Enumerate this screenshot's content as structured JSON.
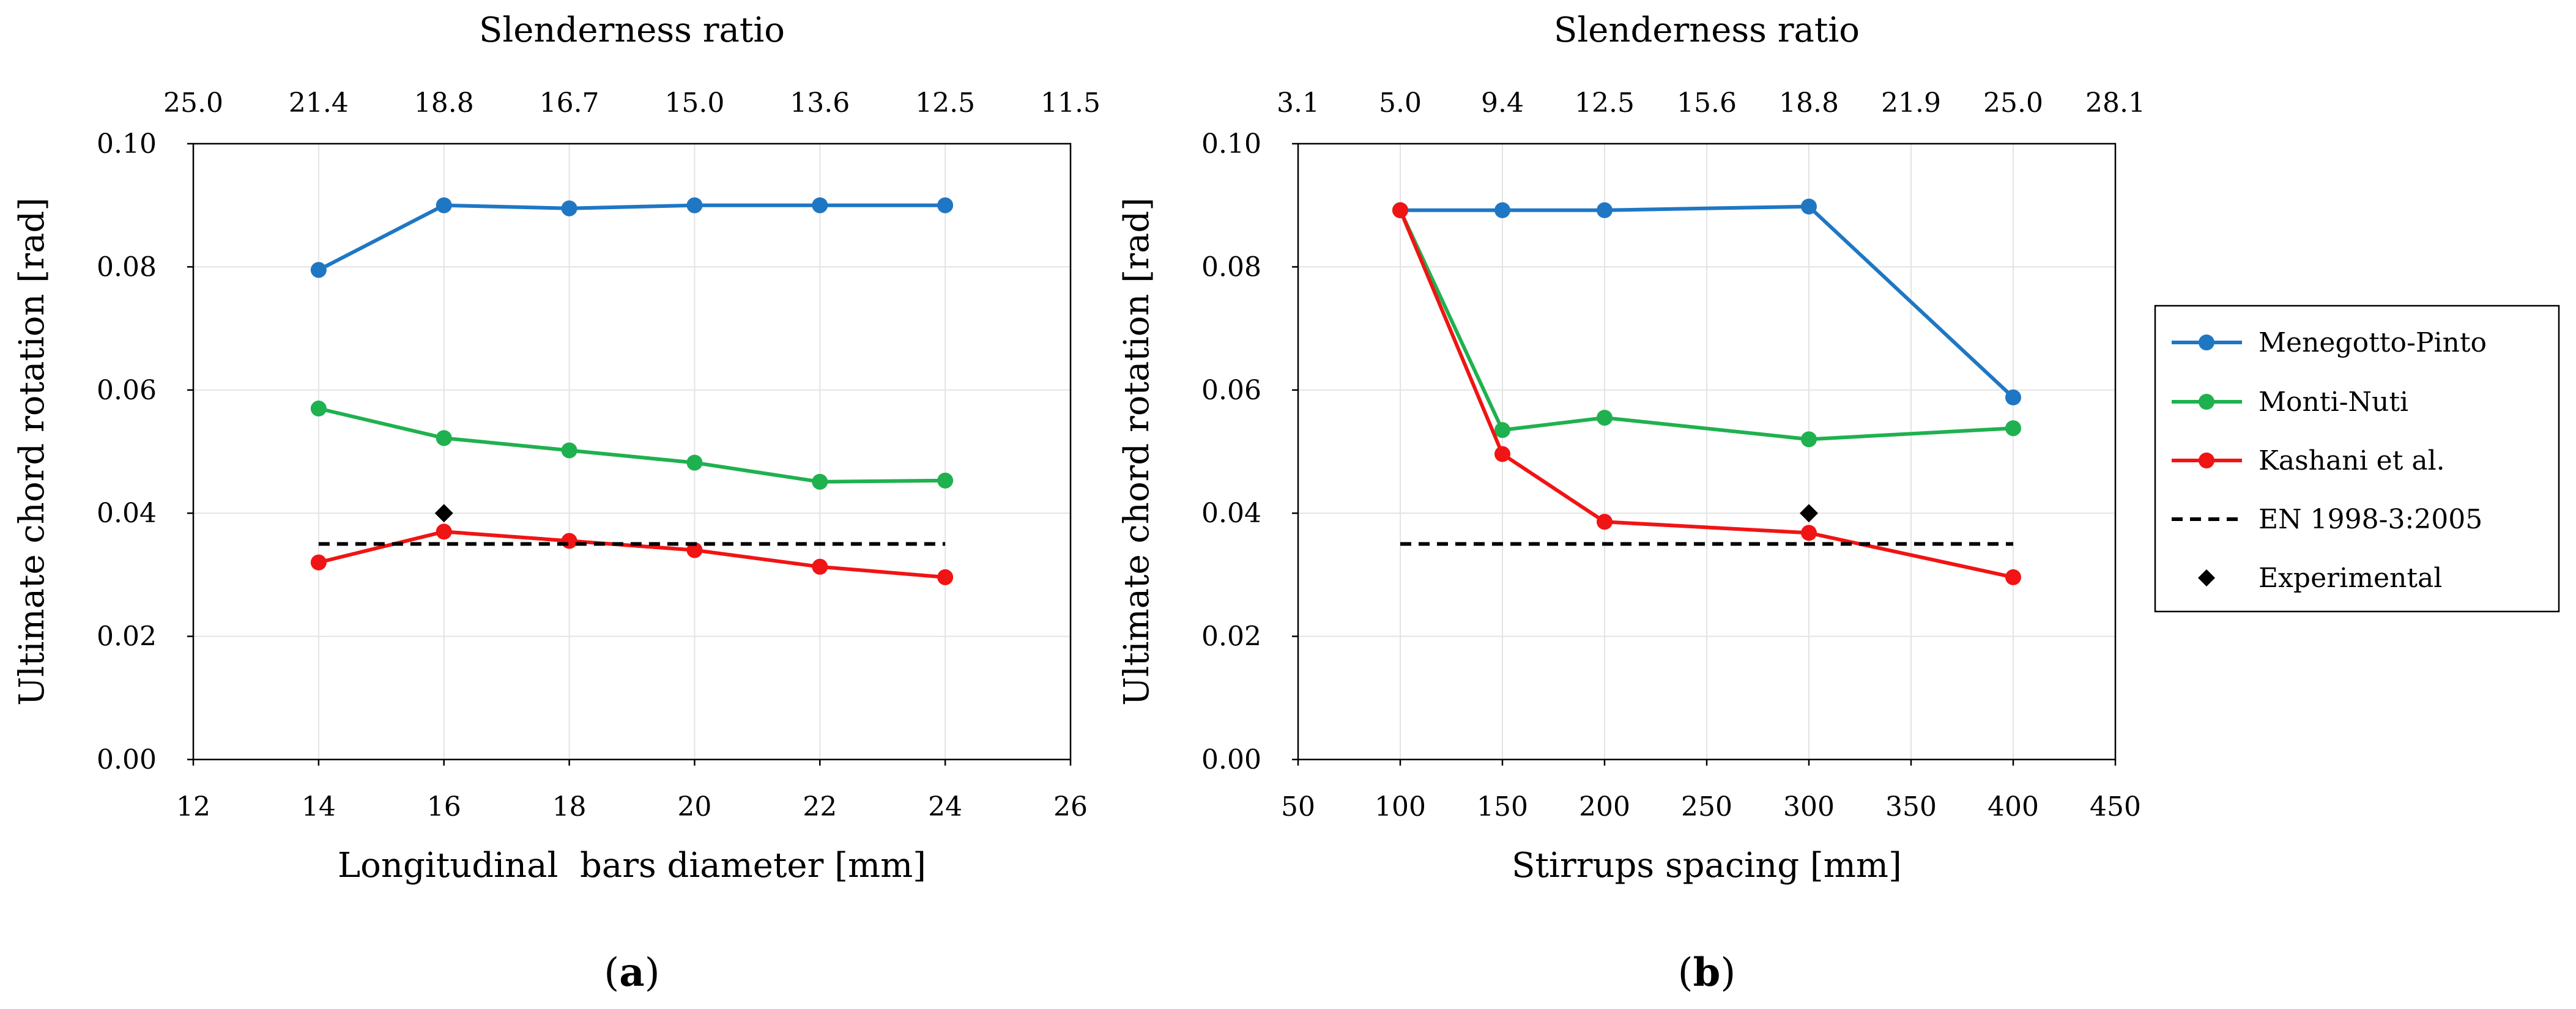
{
  "legend": {
    "items": [
      {
        "name": "Menegotto-Pinto",
        "color": "#1f77c4",
        "style": "line-marker"
      },
      {
        "name": "Monti-Nuti",
        "color": "#1fb14f",
        "style": "line-marker"
      },
      {
        "name": "Kashani et al.",
        "color": "#f01414",
        "style": "line-marker"
      },
      {
        "name": "EN 1998-3:2005",
        "color": "#000000",
        "style": "dashed"
      },
      {
        "name": "Experimental",
        "color": "#000000",
        "style": "diamond"
      }
    ]
  },
  "chart_data": [
    {
      "type": "line",
      "panel_label": "a",
      "xlabel": "Longitudinal  bars diameter [mm]",
      "ylabel": "Ultimate chord rotation [rad]",
      "top_axis_title": "Slenderness ratio",
      "xlim": [
        12,
        26
      ],
      "ylim": [
        0,
        0.1
      ],
      "xticks": [
        "12",
        "14",
        "16",
        "18",
        "20",
        "22",
        "24",
        "26"
      ],
      "yticks": [
        "0.00",
        "0.02",
        "0.04",
        "0.06",
        "0.08",
        "0.10"
      ],
      "top_ticks": [
        "25.0",
        "21.4",
        "18.8",
        "16.7",
        "15.0",
        "13.6",
        "12.5",
        "11.5"
      ],
      "grid": true,
      "series": [
        {
          "name": "Menegotto-Pinto",
          "x": [
            14,
            16,
            18,
            20,
            22,
            24
          ],
          "y": [
            0.0795,
            0.09,
            0.0895,
            0.09,
            0.09,
            0.09
          ]
        },
        {
          "name": "Monti-Nuti",
          "x": [
            14,
            16,
            18,
            20,
            22,
            24
          ],
          "y": [
            0.057,
            0.0522,
            0.0502,
            0.0482,
            0.0451,
            0.0453
          ]
        },
        {
          "name": "Kashani et al.",
          "x": [
            14,
            16,
            18,
            20,
            22,
            24
          ],
          "y": [
            0.032,
            0.037,
            0.0355,
            0.034,
            0.0313,
            0.0296
          ]
        },
        {
          "name": "EN 1998-3:2005",
          "x": [
            14,
            24
          ],
          "y": [
            0.035,
            0.035
          ]
        },
        {
          "name": "Experimental",
          "x": [
            16
          ],
          "y": [
            0.04
          ]
        }
      ]
    },
    {
      "type": "line",
      "panel_label": "b",
      "xlabel": "Stirrups spacing [mm]",
      "ylabel": "Ultimate chord rotation [rad]",
      "top_axis_title": "Slenderness ratio",
      "xlim": [
        50,
        450
      ],
      "ylim": [
        0,
        0.1
      ],
      "xticks": [
        "50",
        "100",
        "150",
        "200",
        "250",
        "300",
        "350",
        "400",
        "450"
      ],
      "yticks": [
        "0.00",
        "0.02",
        "0.04",
        "0.06",
        "0.08",
        "0.10"
      ],
      "top_ticks": [
        "3.1",
        "5.0",
        "9.4",
        "12.5",
        "15.6",
        "18.8",
        "21.9",
        "25.0",
        "28.1"
      ],
      "grid": true,
      "series": [
        {
          "name": "Menegotto-Pinto",
          "x": [
            100,
            150,
            200,
            300,
            400
          ],
          "y": [
            0.0892,
            0.0892,
            0.0892,
            0.0898,
            0.0588
          ]
        },
        {
          "name": "Monti-Nuti",
          "x": [
            100,
            150,
            200,
            300,
            400
          ],
          "y": [
            0.0892,
            0.0535,
            0.0555,
            0.052,
            0.0538
          ]
        },
        {
          "name": "Kashani et al.",
          "x": [
            100,
            150,
            200,
            300,
            400
          ],
          "y": [
            0.0892,
            0.0496,
            0.0386,
            0.0368,
            0.0296
          ]
        },
        {
          "name": "EN 1998-3:2005",
          "x": [
            100,
            400
          ],
          "y": [
            0.035,
            0.035
          ]
        },
        {
          "name": "Experimental",
          "x": [
            300
          ],
          "y": [
            0.04
          ]
        }
      ]
    }
  ]
}
